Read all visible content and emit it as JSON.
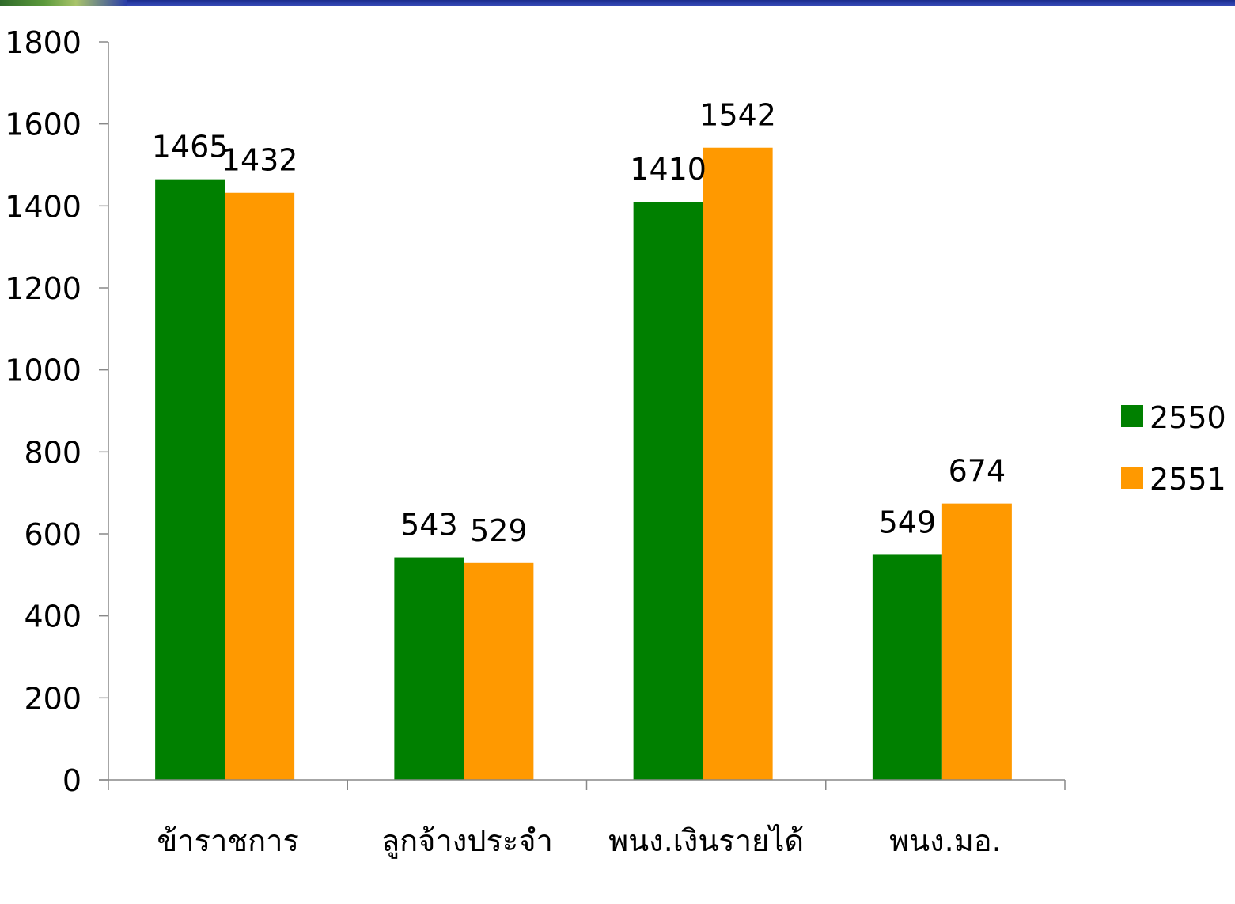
{
  "chart_data": {
    "type": "bar",
    "categories": [
      "ข้าราชการ",
      "ลูกจ้างประจำ",
      "พนง.เงินรายได้",
      "พนง.มอ."
    ],
    "series": [
      {
        "name": "2550",
        "values": [
          1465,
          543,
          1410,
          549
        ],
        "color": "#008000"
      },
      {
        "name": "2551",
        "values": [
          1432,
          529,
          1542,
          674
        ],
        "color": "#ff9900"
      }
    ],
    "title": "",
    "xlabel": "",
    "ylabel": "",
    "ylim": [
      0,
      1800
    ],
    "yticks": [
      "0",
      "200",
      "400",
      "600",
      "800",
      "1000",
      "1200",
      "1400",
      "1600",
      "1800"
    ],
    "grid": false,
    "legend_position": "right"
  },
  "theme": {
    "banner_color": "#2a3ea8",
    "axis_color": "#888888"
  }
}
